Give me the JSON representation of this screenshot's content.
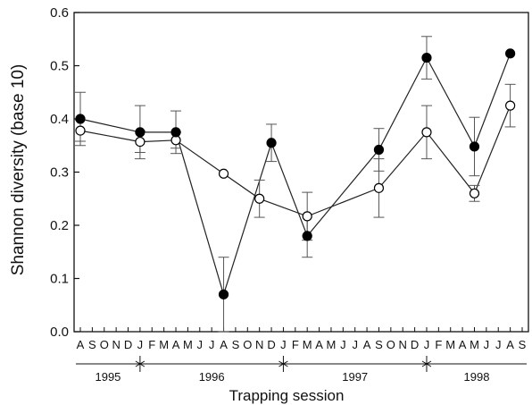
{
  "chart_data": {
    "type": "line",
    "ylabel": "Shannon diversity (base 10)",
    "xlabel": "Trapping session",
    "ylim": [
      0.0,
      0.6
    ],
    "y_ticks": [
      "0.0",
      "0.1",
      "0.2",
      "0.3",
      "0.4",
      "0.5",
      "0.6"
    ],
    "month_labels": [
      "A",
      "S",
      "O",
      "N",
      "D",
      "J",
      "F",
      "M",
      "A",
      "M",
      "J",
      "J",
      "A",
      "S",
      "O",
      "N",
      "D",
      "J",
      "F",
      "M",
      "A",
      "M",
      "J",
      "J",
      "A",
      "S",
      "O",
      "N",
      "D",
      "J",
      "F",
      "M",
      "A",
      "M",
      "J",
      "J",
      "A",
      "S"
    ],
    "years": [
      {
        "label": "1995",
        "start_index": 0,
        "end_index": 5
      },
      {
        "label": "1996",
        "start_index": 5,
        "end_index": 17
      },
      {
        "label": "1997",
        "start_index": 17,
        "end_index": 29
      },
      {
        "label": "1998",
        "start_index": 29,
        "end_index": 37
      }
    ],
    "series": [
      {
        "marker": "filled",
        "points": [
          {
            "x": "Aug 1995",
            "xi": 0,
            "y": 0.4,
            "err": 0.05
          },
          {
            "x": "Jan 1996",
            "xi": 5,
            "y": 0.375,
            "err": 0.05
          },
          {
            "x": "Apr 1996",
            "xi": 8,
            "y": 0.375,
            "err": 0.04
          },
          {
            "x": "Aug 1996",
            "xi": 12,
            "y": 0.07,
            "err": 0.07
          },
          {
            "x": "Dec 1996",
            "xi": 16,
            "y": 0.355,
            "err": 0.035
          },
          {
            "x": "Mar 1997",
            "xi": 19,
            "y": 0.18,
            "err": 0.04
          },
          {
            "x": "Sep 1997",
            "xi": 25,
            "y": 0.342,
            "err": 0.04
          },
          {
            "x": "Jan 1998",
            "xi": 29,
            "y": 0.515,
            "err": 0.04
          },
          {
            "x": "May 1998",
            "xi": 33,
            "y": 0.348,
            "err": 0.055
          },
          {
            "x": "Aug 1998",
            "xi": 36,
            "y": 0.523,
            "err": 0
          }
        ]
      },
      {
        "marker": "open",
        "points": [
          {
            "x": "Aug 1995",
            "xi": 0,
            "y": 0.378,
            "err": 0.02
          },
          {
            "x": "Jan 1996",
            "xi": 5,
            "y": 0.357,
            "err": 0.02
          },
          {
            "x": "Apr 1996",
            "xi": 8,
            "y": 0.36,
            "err": 0.015
          },
          {
            "x": "Aug 1996",
            "xi": 12,
            "y": 0.297,
            "err": 0
          },
          {
            "x": "Nov 1996",
            "xi": 15,
            "y": 0.25,
            "err": 0.035
          },
          {
            "x": "Mar 1997",
            "xi": 19,
            "y": 0.217,
            "err": 0.045
          },
          {
            "x": "Sep 1997",
            "xi": 25,
            "y": 0.27,
            "err": 0.055
          },
          {
            "x": "Jan 1998",
            "xi": 29,
            "y": 0.375,
            "err": 0.05
          },
          {
            "x": "May 1998",
            "xi": 33,
            "y": 0.26,
            "err": 0.015
          },
          {
            "x": "Aug 1998",
            "xi": 36,
            "y": 0.425,
            "err": 0.04
          }
        ]
      }
    ],
    "grid": false,
    "colors": {
      "line": "#222222",
      "marker_fill": "#000000",
      "marker_open_fill": "#ffffff"
    }
  }
}
